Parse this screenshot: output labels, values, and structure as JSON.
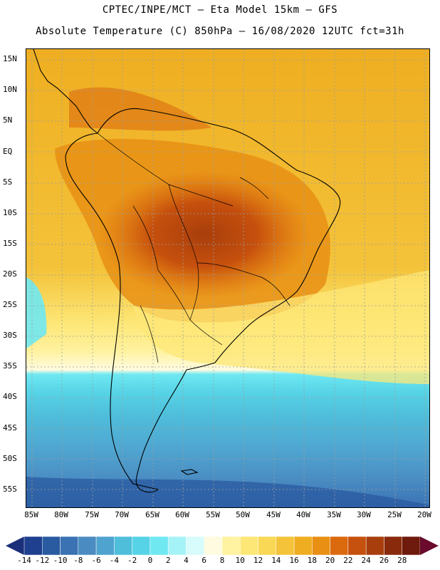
{
  "title_line1": "CPTEC/INPE/MCT –  Eta Model 15km – GFS",
  "title_line2": "Absolute Temperature (C) 850hPa – 16/08/2020 12UTC fct=31h",
  "map": {
    "lat_labels": [
      "15N",
      "10N",
      "5N",
      "EQ",
      "5S",
      "10S",
      "15S",
      "20S",
      "25S",
      "30S",
      "35S",
      "40S",
      "45S",
      "50S",
      "55S"
    ],
    "lon_labels": [
      "85W",
      "80W",
      "75W",
      "70W",
      "65W",
      "60W",
      "55W",
      "50W",
      "45W",
      "40W",
      "35W",
      "30W",
      "25W",
      "20W"
    ]
  },
  "colorbar": {
    "labels": [
      "-14",
      "-12",
      "-10",
      "-8",
      "-6",
      "-4",
      "-2",
      "0",
      "2",
      "4",
      "6",
      "8",
      "10",
      "12",
      "14",
      "16",
      "18",
      "20",
      "22",
      "24",
      "26",
      "28"
    ],
    "colors": [
      "#1f3f8f",
      "#2a5aa0",
      "#3a72b3",
      "#4a8cc2",
      "#4fa3cf",
      "#4fbedb",
      "#56d3e6",
      "#6fe8f2",
      "#a6f3f7",
      "#d8fbfb",
      "#fffbe0",
      "#fff2a0",
      "#fde777",
      "#f9d855",
      "#f4c33a",
      "#efae21",
      "#e88f14",
      "#db6a0f",
      "#c6500d",
      "#a83e0c",
      "#8a2a0c",
      "#6e1a0c"
    ],
    "low_color": "#1a2f7a",
    "high_color": "#6a0a2c"
  }
}
